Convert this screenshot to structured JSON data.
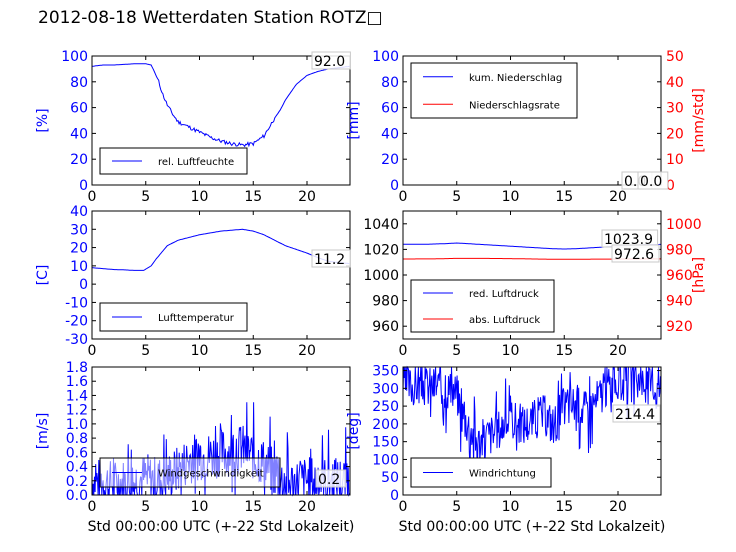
{
  "title": "2012-08-18 Wetterdaten Station ROTZ□",
  "colors": {
    "primary": "#0000ff",
    "secondary": "#ff0000",
    "axes": "#000000"
  },
  "chart_data": [
    {
      "id": "humidity",
      "type": "line",
      "ylabel": "[%]",
      "ylabel_color": "#0000ff",
      "xlim": [
        0,
        24
      ],
      "ylim": [
        0,
        100
      ],
      "xticks": [
        0,
        5,
        10,
        15,
        20
      ],
      "yticks": [
        0,
        20,
        40,
        60,
        80,
        100
      ],
      "ytick_color": "#0000ff",
      "legend": {
        "placement": "lower-left",
        "entries": [
          {
            "label": "rel. Luftfeuchte",
            "color": "#0000ff"
          }
        ]
      },
      "annotations": [
        "92.0"
      ],
      "series": [
        {
          "name": "rel. Luftfeuchte",
          "color": "#0000ff",
          "noise": 0,
          "x": [
            0,
            1,
            2,
            3,
            4,
            5,
            5.5,
            5.8,
            6.2,
            6.6,
            7,
            7.5,
            8,
            9,
            10,
            11,
            12,
            13,
            14,
            15,
            16,
            16.5,
            17,
            17.5,
            18,
            18.5,
            19,
            20,
            21,
            22,
            23,
            24
          ],
          "y": [
            92,
            93,
            93,
            93.5,
            94,
            94,
            93,
            88,
            80,
            70,
            62,
            55,
            49,
            45,
            41,
            37,
            34,
            32,
            31,
            32,
            38,
            45,
            52,
            58,
            66,
            72,
            78,
            85,
            88,
            90,
            91,
            92
          ]
        }
      ]
    },
    {
      "id": "precipitation",
      "type": "line",
      "ylabel": "[mm]",
      "ylabel_color": "#0000ff",
      "y2label": "[mm/std]",
      "y2label_color": "#ff0000",
      "xlim": [
        0,
        24
      ],
      "ylim": [
        0,
        100
      ],
      "y2lim": [
        0,
        50
      ],
      "xticks": [
        0,
        5,
        10,
        15,
        20
      ],
      "yticks": [
        0,
        20,
        40,
        60,
        80,
        100
      ],
      "ytick_color": "#0000ff",
      "y2ticks": [
        0,
        10,
        20,
        30,
        40,
        50
      ],
      "y2tick_color": "#ff0000",
      "legend": {
        "placement": "upper-left",
        "entries": [
          {
            "label": "kum. Niederschlag",
            "color": "#0000ff"
          },
          {
            "label": "Niederschlagsrate",
            "color": "#ff0000"
          }
        ]
      },
      "annotations": [
        "0.0",
        "0.0"
      ],
      "series": [
        {
          "name": "kum. Niederschlag",
          "color": "#0000ff",
          "noise": 0,
          "x": [
            0,
            24
          ],
          "y": [
            0,
            0
          ]
        },
        {
          "name": "Niederschlagsrate",
          "color": "#ff0000",
          "noise": 0,
          "axis": "y2",
          "x": [
            0,
            24
          ],
          "y": [
            0,
            0
          ]
        }
      ]
    },
    {
      "id": "temperature",
      "type": "line",
      "ylabel": "[C]",
      "ylabel_color": "#0000ff",
      "xlim": [
        0,
        24
      ],
      "ylim": [
        -30,
        40
      ],
      "xticks": [
        0,
        5,
        10,
        15,
        20
      ],
      "yticks": [
        -30,
        -20,
        -10,
        0,
        10,
        20,
        30,
        40
      ],
      "ytick_color": "#0000ff",
      "legend": {
        "placement": "lower-left",
        "entries": [
          {
            "label": "Lufttemperatur",
            "color": "#0000ff"
          }
        ]
      },
      "annotations": [
        "11.2"
      ],
      "series": [
        {
          "name": "Lufttemperatur",
          "color": "#0000ff",
          "noise": 0,
          "x": [
            0,
            1,
            2,
            3,
            4,
            4.8,
            5.5,
            6,
            7,
            8,
            9,
            10,
            11,
            12,
            13,
            14,
            15,
            16,
            17,
            18,
            19,
            20,
            21,
            22,
            23,
            24
          ],
          "y": [
            9,
            8.5,
            8,
            7.8,
            7.5,
            7.5,
            10,
            14,
            21,
            24,
            25.5,
            27,
            28,
            29,
            29.5,
            30,
            29,
            27,
            24,
            21,
            19,
            17,
            14.5,
            12.5,
            11.8,
            11.2
          ]
        }
      ]
    },
    {
      "id": "pressure",
      "type": "line",
      "ylabel": "",
      "y2label": "[hPa]",
      "y2label_color": "#ff0000",
      "xlim": [
        0,
        24
      ],
      "ylim": [
        950,
        1050
      ],
      "y2lim": [
        910,
        1010
      ],
      "xticks": [
        0,
        5,
        10,
        15,
        20
      ],
      "yticks": [
        960,
        980,
        1000,
        1020,
        1040
      ],
      "ytick_color": "#000000",
      "y2ticks": [
        920,
        940,
        960,
        980,
        1000
      ],
      "y2tick_color": "#ff0000",
      "legend": {
        "placement": "lower-left",
        "entries": [
          {
            "label": "red. Luftdruck",
            "color": "#0000ff"
          },
          {
            "label": "abs. Luftdruck",
            "color": "#ff0000"
          }
        ]
      },
      "annotations": [
        "1023.9",
        "972.6"
      ],
      "series": [
        {
          "name": "red. Luftdruck",
          "color": "#0000ff",
          "noise": 0,
          "x": [
            0,
            2,
            4,
            5,
            6,
            8,
            10,
            12,
            14,
            15,
            16,
            18,
            20,
            22,
            24
          ],
          "y": [
            1024,
            1024,
            1024.5,
            1025,
            1024.5,
            1023.5,
            1022.5,
            1021.5,
            1020.5,
            1020.3,
            1020.5,
            1021.5,
            1022.5,
            1023.5,
            1023.9
          ]
        },
        {
          "name": "abs. Luftdruck",
          "color": "#ff0000",
          "noise": 0,
          "axis": "y2",
          "x": [
            0,
            3,
            5,
            7,
            10,
            13,
            15,
            18,
            21,
            24
          ],
          "y": [
            972.5,
            972.6,
            973,
            973,
            972.8,
            972.4,
            972.3,
            972.4,
            972.5,
            972.6
          ]
        }
      ]
    },
    {
      "id": "wind-speed",
      "type": "line",
      "ylabel": "[m/s]",
      "ylabel_color": "#0000ff",
      "xlabel": "Std 00:00:00 UTC (+-22 Std Lokalzeit)",
      "xlim": [
        0,
        24
      ],
      "ylim": [
        0,
        1.8
      ],
      "xticks": [
        0,
        5,
        10,
        15,
        20
      ],
      "yticks": [
        0.0,
        0.2,
        0.4,
        0.6,
        0.8,
        1.0,
        1.2,
        1.4,
        1.6,
        1.8
      ],
      "ytick_color": "#0000ff",
      "legend": {
        "placement": "lower-left",
        "entries": [
          {
            "label": "Windgeschwindigkeit",
            "color": "#0000ff"
          }
        ]
      },
      "annotations": [
        "0.2"
      ],
      "series": [
        {
          "name": "Windgeschwindigkeit",
          "color": "#0000ff",
          "noise": 0.35,
          "seed": 7,
          "x": [
            0,
            2,
            4,
            5,
            6,
            7,
            8,
            9,
            10,
            11,
            12,
            13,
            14,
            15,
            16,
            17,
            18,
            20,
            22,
            24
          ],
          "y": [
            0.2,
            0.15,
            0.2,
            0.25,
            0.2,
            0.25,
            0.35,
            0.5,
            0.55,
            0.55,
            0.6,
            0.6,
            0.65,
            0.55,
            0.45,
            0.3,
            0.15,
            0.2,
            0.2,
            0.2
          ]
        }
      ]
    },
    {
      "id": "wind-direction",
      "type": "line",
      "ylabel": "[deg]",
      "ylabel_color": "#0000ff",
      "xlabel": "Std 00:00:00 UTC (+-22 Std Lokalzeit)",
      "xlim": [
        0,
        24
      ],
      "ylim": [
        0,
        360
      ],
      "xticks": [
        0,
        5,
        10,
        15,
        20
      ],
      "yticks": [
        0,
        50,
        100,
        150,
        200,
        250,
        300,
        350
      ],
      "ytick_color": "#0000ff",
      "legend": {
        "placement": "lower-left",
        "entries": [
          {
            "label": "Windrichtung",
            "color": "#0000ff"
          }
        ]
      },
      "annotations": [
        "214.4"
      ],
      "series": [
        {
          "name": "Windrichtung",
          "color": "#0000ff",
          "noise": 60,
          "seed": 3,
          "x": [
            0,
            2,
            4,
            5,
            5.5,
            7,
            9,
            10,
            11,
            12,
            13,
            14,
            15,
            16,
            17,
            18,
            19,
            20,
            22,
            24
          ],
          "y": [
            310,
            310,
            305,
            290,
            230,
            150,
            190,
            220,
            200,
            210,
            230,
            200,
            250,
            260,
            240,
            270,
            310,
            320,
            320,
            300
          ]
        }
      ]
    }
  ]
}
